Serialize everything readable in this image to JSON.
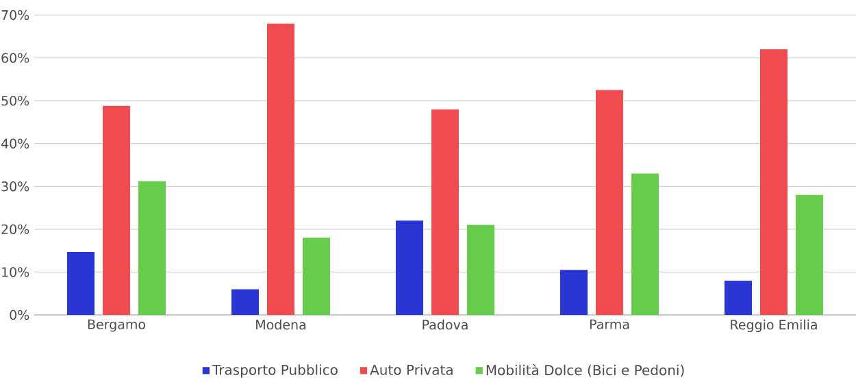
{
  "chart_data": {
    "type": "bar",
    "categories": [
      "Bergamo",
      "Modena",
      "Padova",
      "Parma",
      "Reggio Emilia"
    ],
    "series": [
      {
        "name": "Trasporto Pubblico",
        "color": "#2b35d4",
        "values": [
          14.7,
          6,
          22,
          10.5,
          8
        ]
      },
      {
        "name": "Auto Privata",
        "color": "#f04b4f",
        "values": [
          48.8,
          68,
          48,
          52.5,
          62
        ]
      },
      {
        "name": "Mobilità Dolce (Bici e Pedoni)",
        "color": "#66cc4a",
        "values": [
          31.2,
          18,
          21,
          33,
          28
        ]
      }
    ],
    "ylim": [
      0,
      70
    ],
    "yticks": [
      {
        "value": 0,
        "label": "0%"
      },
      {
        "value": 10,
        "label": "10%"
      },
      {
        "value": 20,
        "label": "20%"
      },
      {
        "value": 30,
        "label": "30%"
      },
      {
        "value": 40,
        "label": "40%"
      },
      {
        "value": 50,
        "label": "50%"
      },
      {
        "value": 60,
        "label": "60%"
      },
      {
        "value": 70,
        "label": "70%"
      }
    ],
    "grid": "y",
    "legend": "bottom"
  }
}
